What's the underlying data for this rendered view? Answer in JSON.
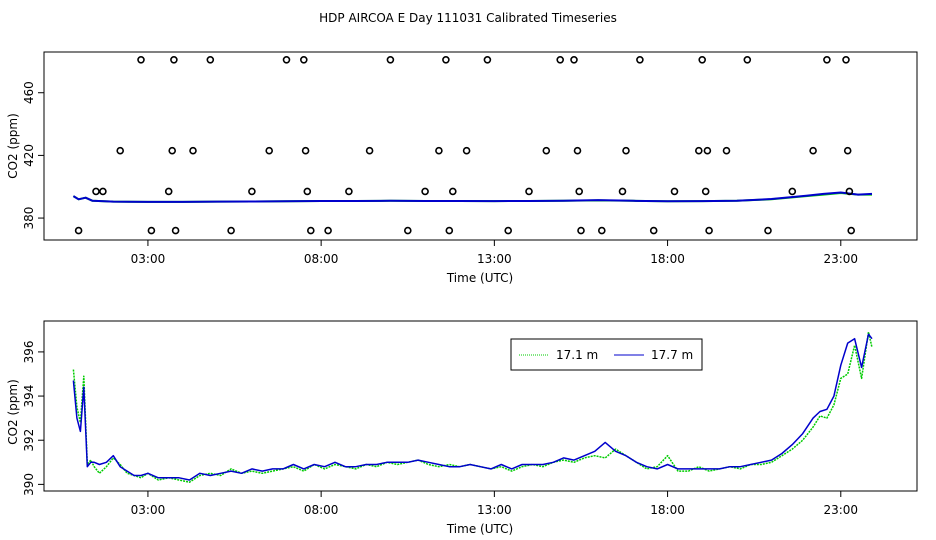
{
  "title": "HDP AIRCOA E  Day 111031  Calibrated Timeseries",
  "chart_data": [
    {
      "type": "line",
      "xlabel": "Time (UTC)",
      "ylabel": "CO2 (ppm)",
      "xlim": [
        0.0,
        25.2
      ],
      "ylim": [
        366,
        486
      ],
      "xticks": [
        3,
        8,
        13,
        18,
        23
      ],
      "xtick_labels": [
        "03:00",
        "08:00",
        "13:00",
        "18:00",
        "23:00"
      ],
      "yticks": [
        380,
        420,
        460
      ],
      "ytick_labels": [
        "380",
        "420",
        "460"
      ],
      "grid": false,
      "series": [
        {
          "color": "#00cc00",
          "x": [
            0.85,
            1.0,
            1.2,
            1.4,
            2.0,
            3.0,
            4.0,
            5.0,
            6.0,
            7.0,
            8.0,
            9.0,
            10.0,
            11.0,
            12.0,
            13.0,
            14.0,
            15.0,
            16.0,
            17.0,
            18.0,
            19.0,
            20.0,
            21.0,
            22.0,
            22.5,
            23.0,
            23.5,
            23.9
          ],
          "y": [
            394,
            392,
            393,
            391,
            390.5,
            390.3,
            390.3,
            390.5,
            390.6,
            390.7,
            390.9,
            390.9,
            391,
            390.9,
            390.9,
            390.8,
            390.9,
            391,
            391.3,
            391,
            390.7,
            390.8,
            391,
            392,
            394,
            395,
            396,
            395,
            395
          ]
        },
        {
          "color": "#0000cc",
          "x": [
            0.85,
            1.0,
            1.2,
            1.4,
            2.0,
            3.0,
            4.0,
            5.0,
            6.0,
            7.0,
            8.0,
            9.0,
            10.0,
            11.0,
            12.0,
            13.0,
            14.0,
            15.0,
            16.0,
            17.0,
            18.0,
            19.0,
            20.0,
            21.0,
            22.0,
            22.5,
            23.0,
            23.5,
            23.9
          ],
          "y": [
            394,
            392,
            393,
            391,
            390.5,
            390.3,
            390.3,
            390.5,
            390.6,
            390.7,
            390.9,
            390.9,
            391,
            390.9,
            390.9,
            390.8,
            390.9,
            391,
            391.5,
            391,
            390.7,
            390.8,
            391,
            392.2,
            394.2,
            395.4,
            396.3,
            395,
            395.4
          ]
        }
      ],
      "points": {
        "type": "scatter",
        "marker": "open-circle",
        "x": [
          1.0,
          1.5,
          1.7,
          2.2,
          2.8,
          3.1,
          3.6,
          3.7,
          3.75,
          3.8,
          4.3,
          4.8,
          5.4,
          6.0,
          6.5,
          7.0,
          7.5,
          7.55,
          7.6,
          7.7,
          8.2,
          8.8,
          9.4,
          10.0,
          10.5,
          11.0,
          11.4,
          11.6,
          11.7,
          11.8,
          12.2,
          12.8,
          13.4,
          14.0,
          14.5,
          14.9,
          15.3,
          15.4,
          15.45,
          15.5,
          16.1,
          16.7,
          16.8,
          17.2,
          17.6,
          18.2,
          18.9,
          19.0,
          19.1,
          19.15,
          19.2,
          19.7,
          20.3,
          20.9,
          21.6,
          22.2,
          22.6,
          23.15,
          23.2,
          23.25,
          23.3
        ],
        "y": [
          372,
          397,
          397,
          423,
          481,
          372,
          397,
          423,
          481,
          372,
          423,
          481,
          372,
          397,
          423,
          481,
          481,
          423,
          397,
          372,
          372,
          397,
          423,
          481,
          372,
          397,
          423,
          481,
          372,
          397,
          423,
          481,
          372,
          397,
          423,
          481,
          481,
          423,
          397,
          372,
          372,
          397,
          423,
          481,
          372,
          397,
          423,
          481,
          397,
          423,
          372,
          423,
          481,
          372,
          397,
          423,
          481,
          481,
          423,
          397,
          372
        ]
      }
    },
    {
      "type": "line",
      "xlabel": "Time (UTC)",
      "ylabel": "CO2 (ppm)",
      "xlim": [
        0.0,
        25.2
      ],
      "ylim": [
        389.7,
        397.4
      ],
      "xticks": [
        3,
        8,
        13,
        18,
        23
      ],
      "xtick_labels": [
        "03:00",
        "08:00",
        "13:00",
        "18:00",
        "23:00"
      ],
      "yticks": [
        390,
        392,
        394,
        396
      ],
      "ytick_labels": [
        "390",
        "392",
        "394",
        "396"
      ],
      "grid": false,
      "legend_placement": "top-right",
      "series": [
        {
          "name": "17.1 m",
          "color": "#00cc00",
          "x": [
            0.85,
            0.95,
            1.05,
            1.15,
            1.25,
            1.35,
            1.45,
            1.6,
            1.8,
            2.0,
            2.2,
            2.4,
            2.6,
            2.8,
            3.0,
            3.3,
            3.6,
            3.9,
            4.2,
            4.5,
            4.8,
            5.1,
            5.4,
            5.7,
            6.0,
            6.3,
            6.6,
            6.9,
            7.2,
            7.5,
            7.8,
            8.1,
            8.4,
            8.7,
            9.0,
            9.3,
            9.6,
            9.9,
            10.2,
            10.5,
            10.8,
            11.1,
            11.4,
            11.7,
            12.0,
            12.3,
            12.6,
            12.9,
            13.2,
            13.5,
            13.8,
            14.1,
            14.4,
            14.7,
            15.0,
            15.3,
            15.6,
            15.9,
            16.2,
            16.5,
            16.8,
            17.1,
            17.4,
            17.7,
            18.0,
            18.3,
            18.6,
            18.9,
            19.2,
            19.5,
            19.8,
            20.1,
            20.4,
            20.7,
            21.0,
            21.3,
            21.6,
            21.9,
            22.2,
            22.4,
            22.6,
            22.8,
            23.0,
            23.2,
            23.4,
            23.6,
            23.8,
            23.9
          ],
          "y": [
            395.2,
            393.5,
            392.8,
            394.9,
            390.9,
            391.1,
            390.8,
            390.5,
            390.8,
            391.2,
            390.9,
            390.5,
            390.4,
            390.3,
            390.5,
            390.2,
            390.3,
            390.2,
            390.1,
            390.4,
            390.5,
            390.4,
            390.7,
            390.5,
            390.6,
            390.5,
            390.6,
            390.7,
            390.8,
            390.6,
            390.9,
            390.7,
            390.9,
            390.8,
            390.7,
            390.9,
            390.8,
            391.0,
            390.9,
            391.0,
            391.1,
            390.9,
            390.8,
            390.9,
            390.8,
            390.9,
            390.8,
            390.7,
            390.8,
            390.6,
            390.8,
            390.9,
            390.8,
            391.0,
            391.1,
            391.0,
            391.2,
            391.3,
            391.2,
            391.6,
            391.3,
            391.0,
            390.7,
            390.8,
            391.3,
            390.6,
            390.6,
            390.8,
            390.6,
            390.7,
            390.8,
            390.7,
            390.9,
            390.9,
            391.0,
            391.3,
            391.6,
            392.0,
            392.6,
            393.1,
            393.0,
            393.6,
            394.8,
            395.0,
            396.3,
            394.8,
            396.9,
            396.2
          ]
        },
        {
          "name": "17.7 m",
          "color": "#0000cc",
          "x": [
            0.85,
            0.95,
            1.05,
            1.15,
            1.25,
            1.35,
            1.45,
            1.6,
            1.8,
            2.0,
            2.2,
            2.4,
            2.6,
            2.8,
            3.0,
            3.3,
            3.6,
            3.9,
            4.2,
            4.5,
            4.8,
            5.1,
            5.4,
            5.7,
            6.0,
            6.3,
            6.6,
            6.9,
            7.2,
            7.5,
            7.8,
            8.1,
            8.4,
            8.7,
            9.0,
            9.3,
            9.6,
            9.9,
            10.2,
            10.5,
            10.8,
            11.1,
            11.4,
            11.7,
            12.0,
            12.3,
            12.6,
            12.9,
            13.2,
            13.5,
            13.8,
            14.1,
            14.4,
            14.7,
            15.0,
            15.3,
            15.6,
            15.9,
            16.2,
            16.5,
            16.8,
            17.1,
            17.4,
            17.7,
            18.0,
            18.3,
            18.6,
            18.9,
            19.2,
            19.5,
            19.8,
            20.1,
            20.4,
            20.7,
            21.0,
            21.3,
            21.6,
            21.9,
            22.2,
            22.4,
            22.6,
            22.8,
            23.0,
            23.2,
            23.4,
            23.6,
            23.8,
            23.9
          ],
          "y": [
            394.7,
            393.0,
            392.4,
            394.4,
            390.8,
            391.0,
            391.0,
            390.9,
            391.0,
            391.3,
            390.8,
            390.6,
            390.4,
            390.4,
            390.5,
            390.3,
            390.3,
            390.3,
            390.2,
            390.5,
            390.4,
            390.5,
            390.6,
            390.5,
            390.7,
            390.6,
            390.7,
            390.7,
            390.9,
            390.7,
            390.9,
            390.8,
            391.0,
            390.8,
            390.8,
            390.9,
            390.9,
            391.0,
            391.0,
            391.0,
            391.1,
            391.0,
            390.9,
            390.8,
            390.8,
            390.9,
            390.8,
            390.7,
            390.9,
            390.7,
            390.9,
            390.9,
            390.9,
            391.0,
            391.2,
            391.1,
            391.3,
            391.5,
            391.9,
            391.5,
            391.3,
            391.0,
            390.8,
            390.7,
            390.9,
            390.7,
            390.7,
            390.7,
            390.7,
            390.7,
            390.8,
            390.8,
            390.9,
            391.0,
            391.1,
            391.4,
            391.8,
            392.3,
            393.0,
            393.3,
            393.4,
            394.0,
            395.4,
            396.4,
            396.6,
            395.3,
            396.8,
            396.6
          ]
        }
      ]
    }
  ]
}
